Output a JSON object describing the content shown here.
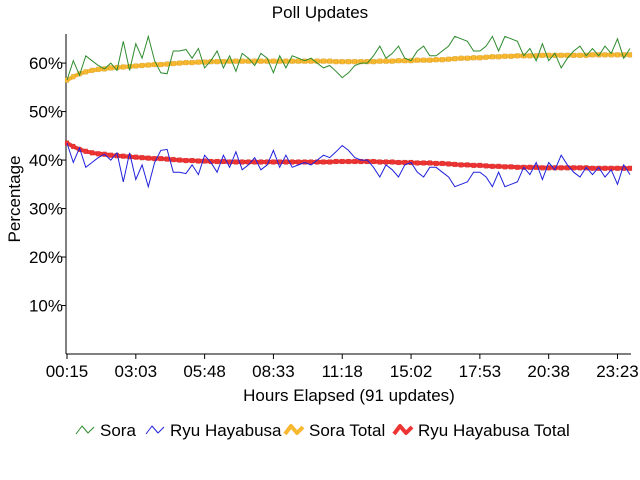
{
  "chart_data": {
    "type": "line",
    "title": "Poll Updates",
    "xlabel": "Hours Elapsed (91 updates)",
    "ylabel": "Percentage",
    "ylim": [
      0,
      66
    ],
    "y_ticks": [
      "10%",
      "20%",
      "30%",
      "40%",
      "50%",
      "60%"
    ],
    "y_tick_values": [
      10,
      20,
      30,
      40,
      50,
      60
    ],
    "x_ticks": [
      "00:15",
      "03:03",
      "05:48",
      "08:33",
      "11:18",
      "15:02",
      "17:53",
      "20:38",
      "23:23"
    ],
    "x_tick_index": [
      0,
      11,
      22,
      33,
      44,
      55,
      66,
      77,
      88
    ],
    "num_updates": 91,
    "grid": false,
    "legend_position": "bottom",
    "series": [
      {
        "name": "Sora",
        "color": "#2e8b2e",
        "style": "thin",
        "values": [
          56.5,
          60.5,
          57.5,
          61.5,
          60.5,
          59.5,
          58.8,
          60.0,
          58.5,
          64.5,
          58.5,
          64.0,
          61.0,
          65.5,
          60.5,
          58.0,
          57.8,
          62.5,
          62.5,
          62.8,
          61.0,
          63.0,
          59.0,
          60.5,
          62.5,
          59.0,
          61.5,
          58.3,
          62.0,
          61.0,
          59.5,
          62.0,
          61.0,
          58.0,
          61.5,
          59.0,
          61.5,
          61.0,
          60.5,
          61.0,
          60.0,
          59.0,
          59.5,
          58.3,
          57.0,
          58.0,
          59.5,
          60.0,
          60.0,
          61.5,
          63.5,
          61.0,
          62.0,
          63.5,
          61.0,
          60.5,
          62.5,
          63.5,
          61.5,
          61.5,
          62.5,
          63.5,
          65.5,
          65.0,
          64.5,
          62.5,
          62.5,
          63.5,
          65.5,
          62.5,
          65.5,
          65.0,
          64.5,
          61.5,
          63.0,
          60.5,
          64.0,
          60.5,
          62.0,
          59.0,
          61.0,
          62.5,
          63.5,
          61.5,
          63.0,
          61.5,
          63.5,
          62.0,
          65.0,
          61.0,
          63.0
        ]
      },
      {
        "name": "Ryu Hayabusa",
        "color": "#2020dd",
        "style": "thin",
        "values": [
          43.5,
          39.5,
          42.5,
          38.5,
          39.5,
          40.5,
          41.2,
          40.0,
          41.5,
          35.5,
          41.5,
          36.0,
          39.0,
          34.5,
          39.5,
          42.0,
          42.2,
          37.5,
          37.5,
          37.2,
          39.0,
          37.0,
          41.0,
          39.5,
          37.5,
          41.0,
          38.5,
          41.7,
          38.0,
          39.0,
          40.5,
          38.0,
          39.0,
          42.0,
          38.5,
          41.0,
          38.5,
          39.0,
          39.5,
          39.0,
          40.0,
          41.0,
          40.5,
          41.7,
          43.0,
          42.0,
          40.5,
          40.0,
          40.0,
          38.5,
          36.5,
          39.0,
          38.0,
          36.5,
          39.0,
          39.5,
          37.5,
          36.5,
          38.5,
          38.5,
          37.5,
          36.5,
          34.5,
          35.0,
          35.5,
          37.5,
          37.5,
          36.5,
          34.5,
          37.5,
          34.5,
          35.0,
          35.5,
          38.5,
          37.0,
          39.5,
          36.0,
          39.5,
          38.0,
          41.0,
          39.0,
          37.5,
          36.5,
          38.5,
          37.0,
          38.5,
          36.5,
          38.0,
          35.0,
          39.0,
          37.0
        ]
      },
      {
        "name": "Sora Total",
        "color": "#f8b830",
        "style": "thick",
        "values": [
          56.5,
          57.2,
          57.8,
          58.2,
          58.5,
          58.7,
          58.8,
          59.0,
          59.1,
          59.2,
          59.3,
          59.4,
          59.5,
          59.6,
          59.7,
          59.7,
          59.8,
          59.9,
          60.0,
          60.1,
          60.1,
          60.2,
          60.2,
          60.3,
          60.3,
          60.3,
          60.4,
          60.4,
          60.4,
          60.4,
          60.4,
          60.4,
          60.4,
          60.4,
          60.4,
          60.4,
          60.4,
          60.4,
          60.4,
          60.4,
          60.4,
          60.4,
          60.4,
          60.3,
          60.3,
          60.3,
          60.3,
          60.3,
          60.3,
          60.3,
          60.4,
          60.4,
          60.4,
          60.5,
          60.5,
          60.5,
          60.6,
          60.6,
          60.6,
          60.7,
          60.7,
          60.8,
          60.9,
          61.0,
          61.0,
          61.1,
          61.1,
          61.2,
          61.3,
          61.3,
          61.4,
          61.4,
          61.5,
          61.5,
          61.5,
          61.5,
          61.6,
          61.6,
          61.6,
          61.6,
          61.6,
          61.6,
          61.6,
          61.6,
          61.7,
          61.7,
          61.7,
          61.7,
          61.7,
          61.7,
          61.7
        ]
      },
      {
        "name": "Ryu Hayabusa Total",
        "color": "#ee3333",
        "style": "thick",
        "values": [
          43.5,
          42.8,
          42.2,
          41.8,
          41.5,
          41.3,
          41.2,
          41.0,
          40.9,
          40.8,
          40.7,
          40.6,
          40.5,
          40.4,
          40.3,
          40.3,
          40.2,
          40.1,
          40.0,
          39.9,
          39.9,
          39.8,
          39.8,
          39.7,
          39.7,
          39.7,
          39.6,
          39.6,
          39.6,
          39.6,
          39.6,
          39.6,
          39.6,
          39.6,
          39.6,
          39.6,
          39.6,
          39.6,
          39.6,
          39.6,
          39.6,
          39.6,
          39.6,
          39.7,
          39.7,
          39.7,
          39.7,
          39.7,
          39.7,
          39.7,
          39.6,
          39.6,
          39.6,
          39.5,
          39.5,
          39.5,
          39.4,
          39.4,
          39.4,
          39.3,
          39.3,
          39.2,
          39.1,
          39.0,
          39.0,
          38.9,
          38.9,
          38.8,
          38.7,
          38.7,
          38.6,
          38.6,
          38.5,
          38.5,
          38.5,
          38.5,
          38.4,
          38.4,
          38.4,
          38.4,
          38.4,
          38.4,
          38.4,
          38.4,
          38.3,
          38.3,
          38.3,
          38.3,
          38.3,
          38.3,
          38.3
        ]
      }
    ]
  }
}
